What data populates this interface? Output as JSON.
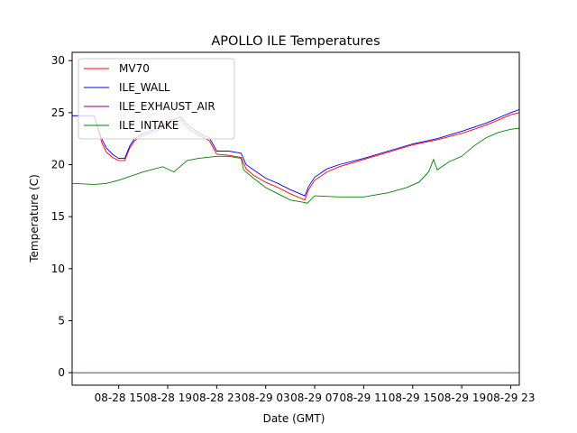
{
  "chart_data": {
    "type": "line",
    "title": "APOLLO ILE Temperatures",
    "xlabel": "Date (GMT)",
    "ylabel": "Temperature (C)",
    "x_unit": "hours since 08-28 00:00 GMT",
    "xlim": [
      11.2,
      47.7
    ],
    "ylim": [
      -1.2,
      30.8
    ],
    "grid": false,
    "legend_position": "top-left",
    "x_ticks": [
      {
        "value": 15,
        "label": "08-28 15"
      },
      {
        "value": 19,
        "label": "08-28 19"
      },
      {
        "value": 23,
        "label": "08-28 23"
      },
      {
        "value": 27,
        "label": "08-29 03"
      },
      {
        "value": 31,
        "label": "08-29 07"
      },
      {
        "value": 35,
        "label": "08-29 11"
      },
      {
        "value": 39,
        "label": "08-29 15"
      },
      {
        "value": 43,
        "label": "08-29 19"
      },
      {
        "value": 47,
        "label": "08-29 23"
      }
    ],
    "y_ticks": [
      {
        "value": 0,
        "label": "0"
      },
      {
        "value": 5,
        "label": "5"
      },
      {
        "value": 10,
        "label": "10"
      },
      {
        "value": 15,
        "label": "15"
      },
      {
        "value": 20,
        "label": "20"
      },
      {
        "value": 25,
        "label": "25"
      },
      {
        "value": 30,
        "label": "30"
      }
    ],
    "series": [
      {
        "name": "MV70",
        "color": "#ff0000",
        "x": [
          11.2,
          13.0,
          13.3,
          13.6,
          14.0,
          14.5,
          15.0,
          15.5,
          15.9,
          16.3,
          17.0,
          18.0,
          19.2,
          20.0,
          20.5,
          21.0,
          21.6,
          22.4,
          23.0,
          24.0,
          25.0,
          25.4,
          26.0,
          27.0,
          28.0,
          29.0,
          30.2,
          30.5,
          31.0,
          32.0,
          33.0,
          35.0,
          37.0,
          39.0,
          41.0,
          43.0,
          45.0,
          47.0,
          47.7
        ],
        "y": [
          24.7,
          24.7,
          23.5,
          22.2,
          21.2,
          20.7,
          20.4,
          20.4,
          21.6,
          22.3,
          22.8,
          23.2,
          23.9,
          24.3,
          23.7,
          23.2,
          22.8,
          22.3,
          21.0,
          20.9,
          20.7,
          19.6,
          19.0,
          18.3,
          17.8,
          17.2,
          16.6,
          17.6,
          18.5,
          19.3,
          19.8,
          20.5,
          21.2,
          21.9,
          22.4,
          23.0,
          23.8,
          24.8,
          25.0
        ]
      },
      {
        "name": "ILE_WALL",
        "color": "#0000ff",
        "x": [
          11.2,
          13.0,
          13.3,
          13.6,
          14.0,
          14.5,
          15.0,
          15.5,
          15.9,
          16.3,
          17.0,
          18.0,
          19.2,
          20.0,
          20.5,
          21.0,
          21.6,
          22.4,
          23.0,
          24.0,
          25.0,
          25.4,
          26.0,
          27.0,
          28.0,
          29.0,
          30.2,
          30.5,
          31.0,
          32.0,
          33.0,
          35.0,
          37.0,
          39.0,
          41.0,
          43.0,
          45.0,
          47.0,
          47.7
        ],
        "y": [
          24.7,
          24.7,
          23.6,
          22.5,
          21.6,
          21.0,
          20.6,
          20.6,
          21.8,
          22.5,
          23.0,
          23.4,
          24.2,
          24.6,
          24.0,
          23.5,
          23.0,
          22.6,
          21.3,
          21.3,
          21.1,
          20.0,
          19.5,
          18.7,
          18.2,
          17.6,
          17.0,
          17.9,
          18.8,
          19.6,
          20.0,
          20.6,
          21.3,
          22.0,
          22.5,
          23.2,
          24.0,
          25.0,
          25.3
        ]
      },
      {
        "name": "ILE_EXHAUST_AIR",
        "color": "#800080",
        "x": [
          11.2,
          47.7
        ],
        "y": [
          0,
          0
        ]
      },
      {
        "name": "ILE_INTAKE",
        "color": "#008000",
        "x": [
          11.2,
          13.0,
          14.0,
          15.0,
          17.0,
          18.6,
          19.5,
          20.0,
          20.6,
          21.5,
          23.0,
          24.0,
          25.0,
          25.2,
          26.0,
          27.0,
          28.0,
          29.0,
          30.0,
          30.4,
          31.0,
          33.0,
          35.0,
          37.0,
          38.5,
          39.5,
          40.3,
          40.7,
          41.0,
          42.0,
          43.0,
          44.0,
          45.0,
          46.0,
          47.0,
          47.7
        ],
        "y": [
          18.2,
          18.1,
          18.2,
          18.5,
          19.3,
          19.8,
          19.3,
          19.8,
          20.4,
          20.6,
          20.8,
          20.8,
          20.6,
          19.5,
          18.7,
          17.8,
          17.2,
          16.6,
          16.4,
          16.3,
          17.0,
          16.9,
          16.9,
          17.3,
          17.8,
          18.3,
          19.3,
          20.5,
          19.5,
          20.3,
          20.8,
          21.8,
          22.6,
          23.1,
          23.4,
          23.5
        ]
      }
    ]
  }
}
